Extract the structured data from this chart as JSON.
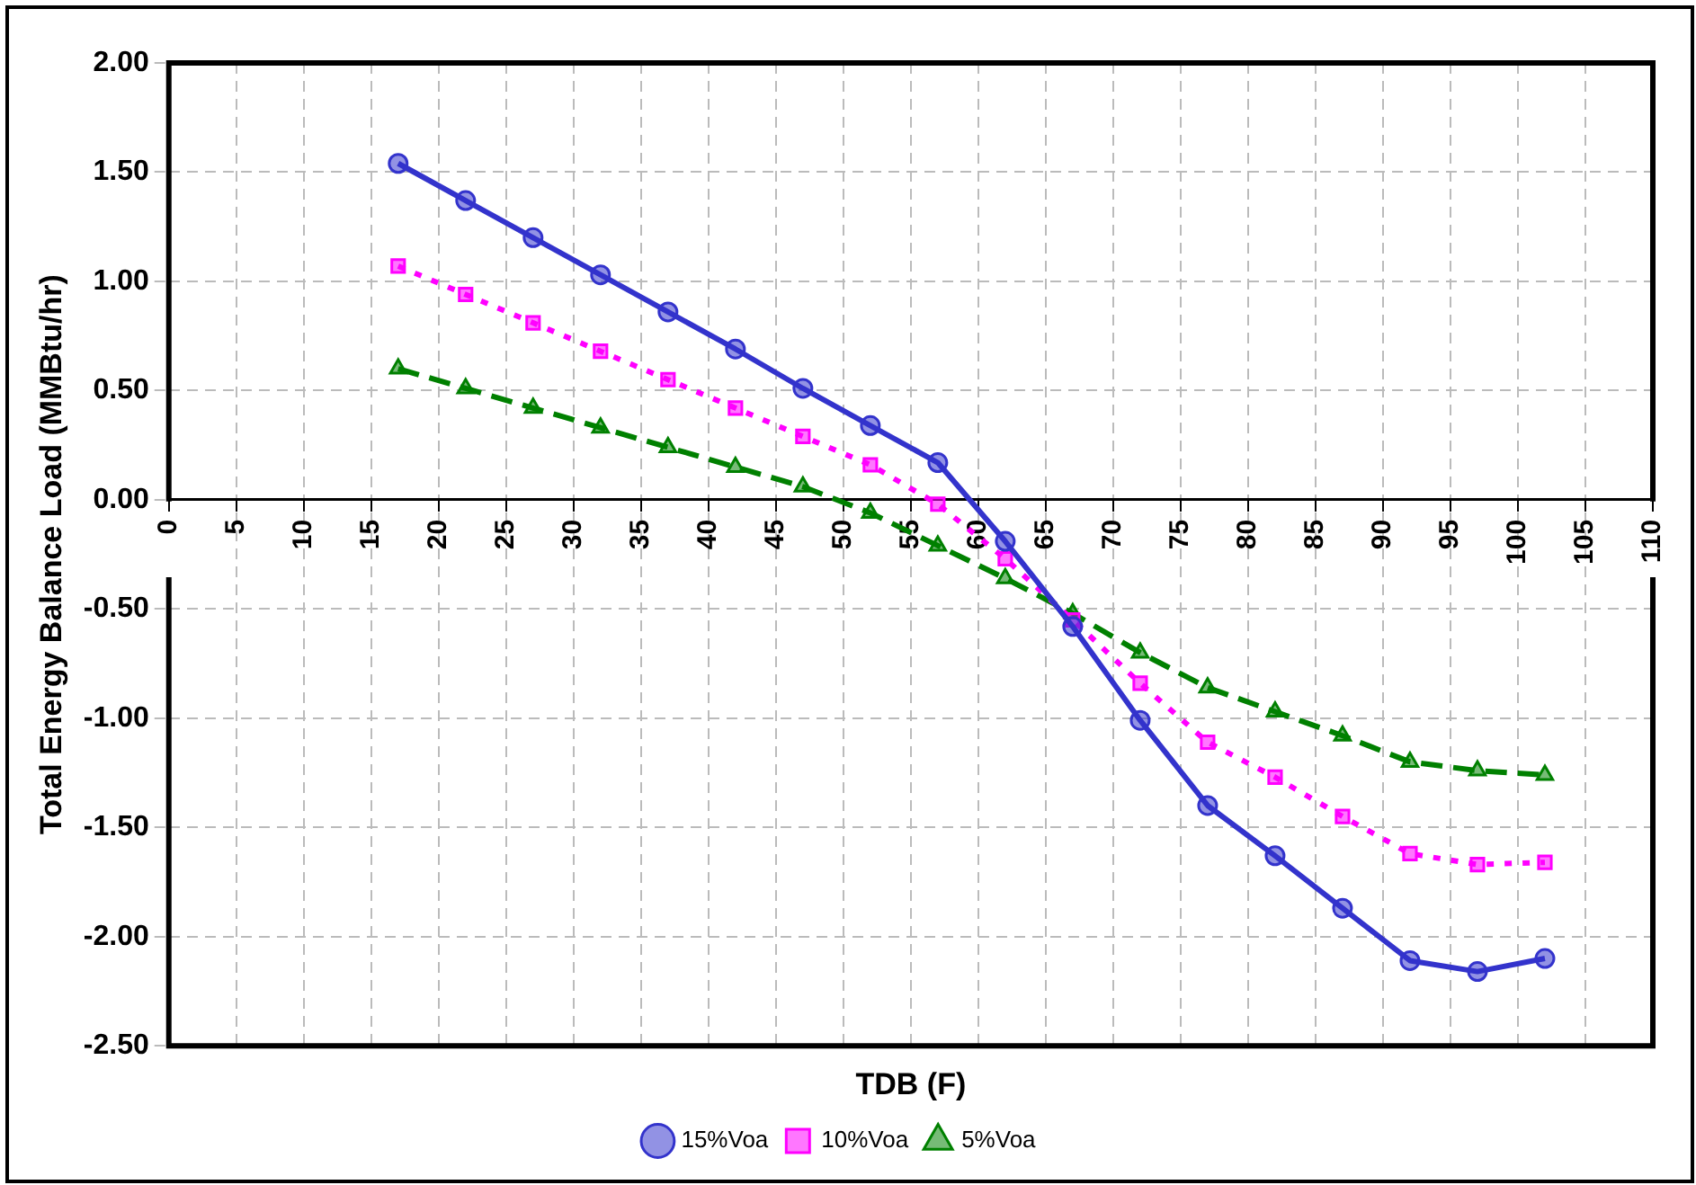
{
  "chart_data": {
    "type": "line",
    "xlabel": "TDB (F)",
    "ylabel": "Total Energy Balance Load (MMBtu/hr)",
    "x": [
      17,
      22,
      27,
      32,
      37,
      42,
      47,
      52,
      57,
      62,
      67,
      72,
      77,
      82,
      87,
      92,
      97,
      102
    ],
    "xlim": [
      0,
      110
    ],
    "xticks": [
      0,
      5,
      10,
      15,
      20,
      25,
      30,
      35,
      40,
      45,
      50,
      55,
      60,
      65,
      70,
      75,
      80,
      85,
      90,
      95,
      100,
      105,
      110
    ],
    "ylim": [
      -2.5,
      2.0
    ],
    "yticks": [
      {
        "value": -2.5,
        "label": "-2.50"
      },
      {
        "value": -2.0,
        "label": "-2.00"
      },
      {
        "value": -1.5,
        "label": "-1.50"
      },
      {
        "value": -1.0,
        "label": "-1.00"
      },
      {
        "value": -0.5,
        "label": "-0.50"
      },
      {
        "value": 0,
        "label": "0.00"
      },
      {
        "value": 0.5,
        "label": "0.50"
      },
      {
        "value": 1.0,
        "label": "1.00"
      },
      {
        "value": 1.5,
        "label": "1.50"
      },
      {
        "value": 2.0,
        "label": "2.00"
      }
    ],
    "grid": true,
    "legend": "bottom",
    "series": [
      {
        "name": "15%Voa",
        "color": "#3333cc",
        "marker": "circle",
        "line_style": "solid",
        "values": [
          1.54,
          1.37,
          1.2,
          1.03,
          0.86,
          0.69,
          0.51,
          0.34,
          0.17,
          -0.19,
          -0.58,
          -1.01,
          -1.4,
          -1.63,
          -1.87,
          -2.11,
          -2.16,
          -2.1
        ]
      },
      {
        "name": "10%Voa",
        "color": "#ff00ff",
        "marker": "square",
        "line_style": "dotted",
        "values": [
          1.07,
          0.94,
          0.81,
          0.68,
          0.55,
          0.42,
          0.29,
          0.16,
          -0.02,
          -0.27,
          -0.55,
          -0.84,
          -1.11,
          -1.27,
          -1.45,
          -1.62,
          -1.67,
          -1.66
        ]
      },
      {
        "name": "5%Voa",
        "color": "#008000",
        "marker": "triangle",
        "line_style": "dashed",
        "values": [
          0.6,
          0.51,
          0.42,
          0.33,
          0.24,
          0.15,
          0.06,
          -0.06,
          -0.21,
          -0.36,
          -0.52,
          -0.7,
          -0.86,
          -0.97,
          -1.08,
          -1.2,
          -1.24,
          -1.26
        ]
      }
    ]
  }
}
